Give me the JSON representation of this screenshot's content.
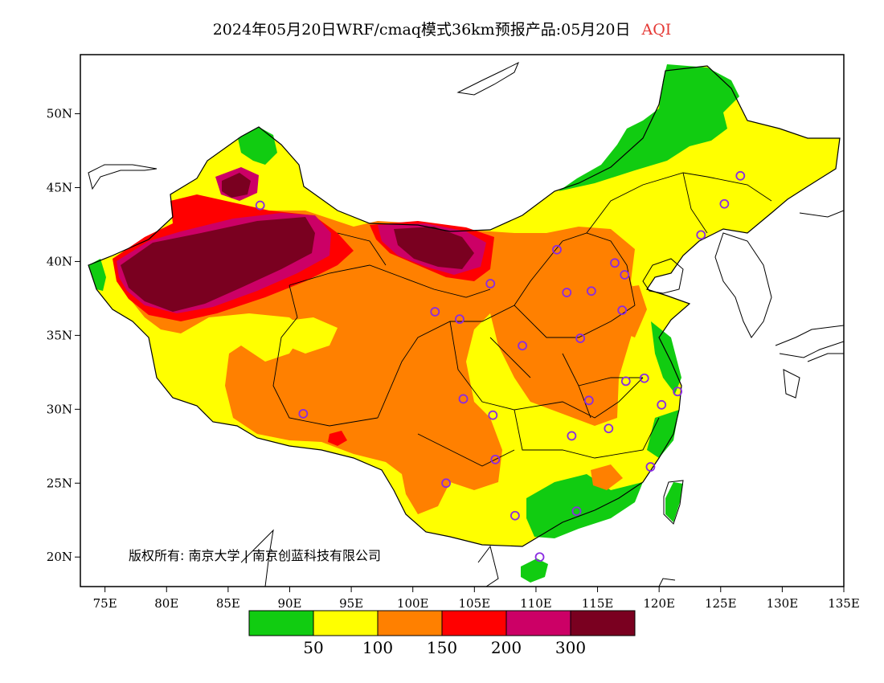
{
  "title": {
    "main": "2024年05月20日WRF/cmaq模式36km预报产品:05月20日",
    "variable": "AQI"
  },
  "copyright": "版权所有: 南京大学 | 南京创蓝科技有限公司",
  "axes": {
    "x_ticks": [
      "75E",
      "80E",
      "85E",
      "90E",
      "95E",
      "100E",
      "105E",
      "110E",
      "115E",
      "120E",
      "125E",
      "130E",
      "135E"
    ],
    "y_ticks": [
      "50N",
      "45N",
      "40N",
      "35N",
      "30N",
      "25N",
      "20N"
    ],
    "lon_range": [
      73,
      135
    ],
    "lat_range": [
      18,
      54
    ]
  },
  "legend": {
    "colors": [
      "#11cc11",
      "#ffff00",
      "#ff8000",
      "#ff0000",
      "#cc0066",
      "#7a0020"
    ],
    "labels": [
      "50",
      "100",
      "150",
      "200",
      "300"
    ]
  },
  "stations": [
    {
      "lon": 116.4,
      "lat": 39.9
    },
    {
      "lon": 117.2,
      "lat": 39.1
    },
    {
      "lon": 114.5,
      "lat": 38.0
    },
    {
      "lon": 112.5,
      "lat": 37.9
    },
    {
      "lon": 111.7,
      "lat": 40.8
    },
    {
      "lon": 123.4,
      "lat": 41.8
    },
    {
      "lon": 125.3,
      "lat": 43.9
    },
    {
      "lon": 126.6,
      "lat": 45.8
    },
    {
      "lon": 117.0,
      "lat": 36.7
    },
    {
      "lon": 113.6,
      "lat": 34.8
    },
    {
      "lon": 118.8,
      "lat": 32.1
    },
    {
      "lon": 117.3,
      "lat": 31.9
    },
    {
      "lon": 121.5,
      "lat": 31.2
    },
    {
      "lon": 120.2,
      "lat": 30.3
    },
    {
      "lon": 114.3,
      "lat": 30.6
    },
    {
      "lon": 112.9,
      "lat": 28.2
    },
    {
      "lon": 115.9,
      "lat": 28.7
    },
    {
      "lon": 119.3,
      "lat": 26.1
    },
    {
      "lon": 113.3,
      "lat": 23.1
    },
    {
      "lon": 108.3,
      "lat": 22.8
    },
    {
      "lon": 110.3,
      "lat": 20.0
    },
    {
      "lon": 106.5,
      "lat": 29.6
    },
    {
      "lon": 104.1,
      "lat": 30.7
    },
    {
      "lon": 106.7,
      "lat": 26.6
    },
    {
      "lon": 102.7,
      "lat": 25.0
    },
    {
      "lon": 91.1,
      "lat": 29.7
    },
    {
      "lon": 101.8,
      "lat": 36.6
    },
    {
      "lon": 103.8,
      "lat": 36.1
    },
    {
      "lon": 106.3,
      "lat": 38.5
    },
    {
      "lon": 108.9,
      "lat": 34.3
    },
    {
      "lon": 87.6,
      "lat": 43.8
    }
  ]
}
